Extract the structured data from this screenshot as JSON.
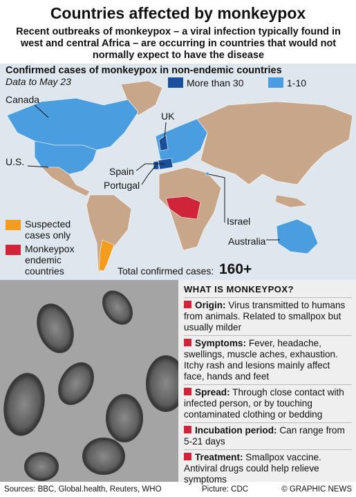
{
  "header": {
    "title": "Countries affected by monkeypox",
    "subtitle": "Recent outbreaks of monkeypox – a viral infection typically found in west and central Africa – are occurring in countries that would not normally expect to have the disease"
  },
  "map": {
    "title": "Confirmed cases of monkeypox in non-endemic countries",
    "subtitle": "Data to May 23",
    "legend": [
      {
        "label": "More than 30",
        "color": "#1a4f9c"
      },
      {
        "label": "1-10",
        "color": "#4a9ee0"
      },
      {
        "label": "Suspected cases only",
        "color": "#f39c1e"
      },
      {
        "label": "Monkeypox endemic countries",
        "color": "#d0243a"
      }
    ],
    "labels": [
      "Canada",
      "U.S.",
      "UK",
      "Spain",
      "Portugal",
      "Israel",
      "Australia"
    ],
    "total": {
      "label": "Total confirmed cases:",
      "value": "160+"
    }
  },
  "info": {
    "title": "WHAT IS MONKEYPOX?",
    "items": [
      {
        "heading": "Origin:",
        "text": "Virus transmitted to humans from animals. Related to smallpox but usually milder"
      },
      {
        "heading": "Symptoms:",
        "text": "Fever, headache, swellings, muscle aches, exhaustion. Itchy rash and lesions mainly affect face, hands and feet"
      },
      {
        "heading": "Spread:",
        "text": "Through close contact with infected person, or by touching contaminated clothing or bedding"
      },
      {
        "heading": "Incubation period:",
        "text": "Can range from 5-21 days"
      },
      {
        "heading": "Treatment:",
        "text": "Smallpox vaccine. Antiviral drugs could help relieve symptoms"
      }
    ]
  },
  "footer": {
    "sources": "Sources: BBC, Global.health, Reuters, WHO",
    "picture": "Picture: CDC",
    "credit": "© GRAPHIC NEWS"
  }
}
